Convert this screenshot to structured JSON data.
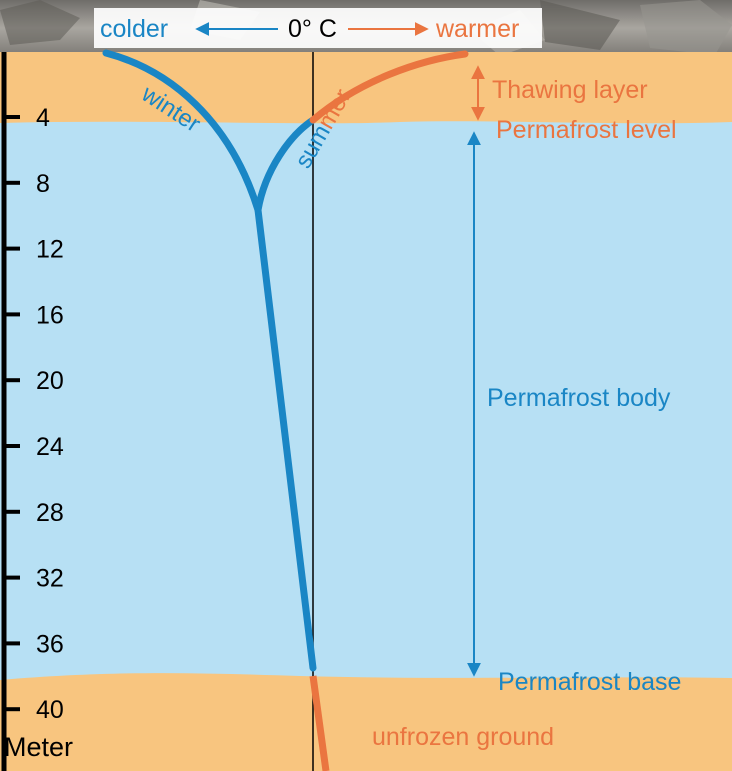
{
  "header": {
    "colder": "colder",
    "zero": "0° C",
    "warmer": "warmer"
  },
  "depth_axis": {
    "unit": "Meter",
    "ticks": [
      "4",
      "8",
      "12",
      "16",
      "20",
      "24",
      "28",
      "32",
      "36",
      "40"
    ]
  },
  "curves": {
    "winter": "winter",
    "summer": "summer"
  },
  "labels": {
    "thawing_layer": "Thawing layer",
    "permafrost_level": "Permafrost level",
    "permafrost_body": "Permafrost body",
    "permafrost_base": "Permafrost base",
    "unfrozen_ground": "unfrozen ground"
  },
  "colors": {
    "ground": "#f8c57f",
    "permafrost": "#b7e0f4",
    "blue": "#1a86c5",
    "orange": "#ea7540",
    "rock": "#8c8a86"
  }
}
